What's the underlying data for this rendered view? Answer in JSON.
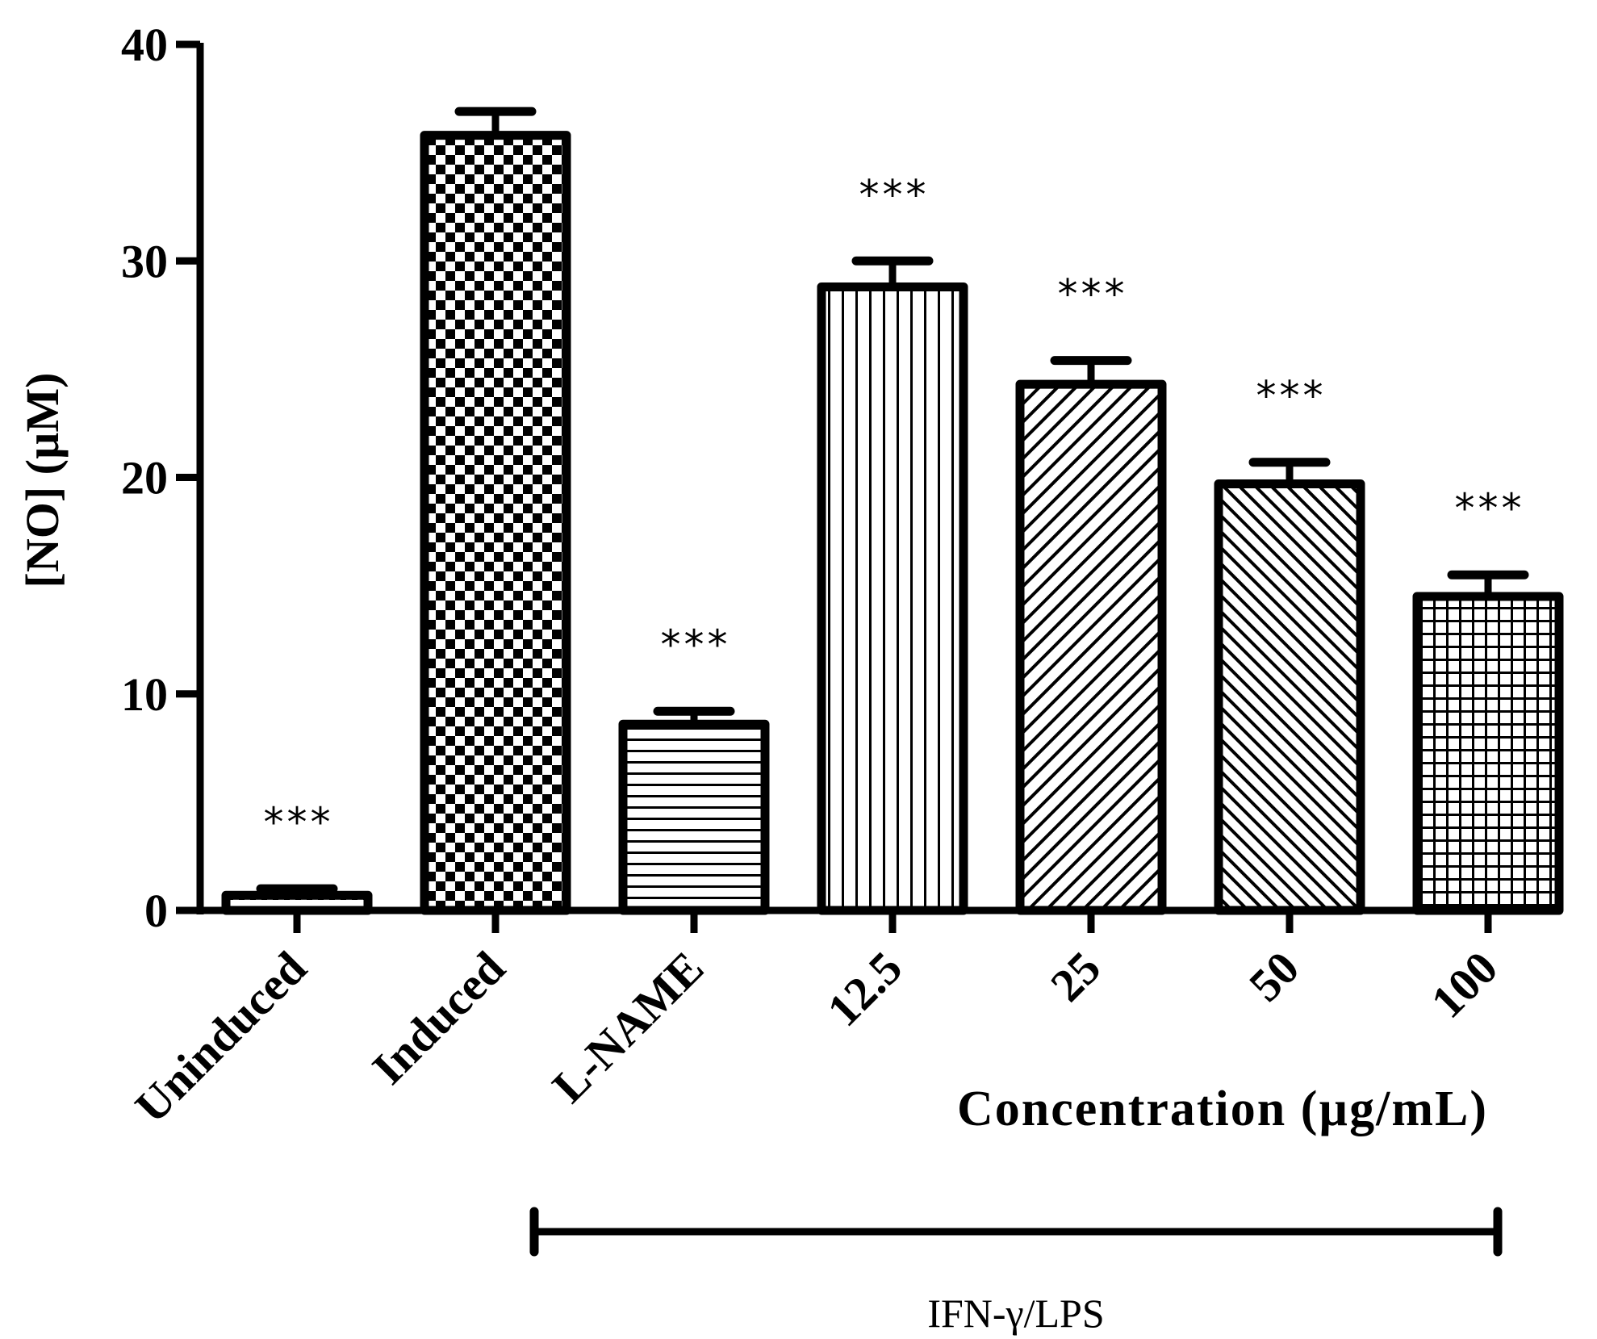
{
  "chart_data": {
    "type": "bar",
    "title": "",
    "xlabel": "Concentration (µg/mL)",
    "ylabel": "[NO] (µM)",
    "ylim": [
      0,
      40
    ],
    "yticks": [
      "0",
      "10",
      "20",
      "30",
      "40"
    ],
    "categories": [
      "Uninduced",
      "Induced",
      "L-NAME",
      "12.5",
      "25",
      "50",
      "100"
    ],
    "values": [
      0.7,
      35.8,
      8.6,
      28.8,
      24.3,
      19.7,
      14.5
    ],
    "errors": [
      0.3,
      1.1,
      0.6,
      1.2,
      1.1,
      1.0,
      1.0
    ],
    "patterns": [
      "dots",
      "checker",
      "hlines",
      "vlines",
      "diag-up",
      "diag-down",
      "grid"
    ],
    "significance": [
      "***",
      "",
      "***",
      "***",
      "***",
      "***",
      "***"
    ],
    "treatment_bracket": {
      "label": "IFN-γ/LPS",
      "from_category": "L-NAME",
      "to_category": "100"
    },
    "grid": false,
    "legend": "none"
  },
  "colors": {
    "ink": "#000000",
    "background": "#ffffff"
  }
}
